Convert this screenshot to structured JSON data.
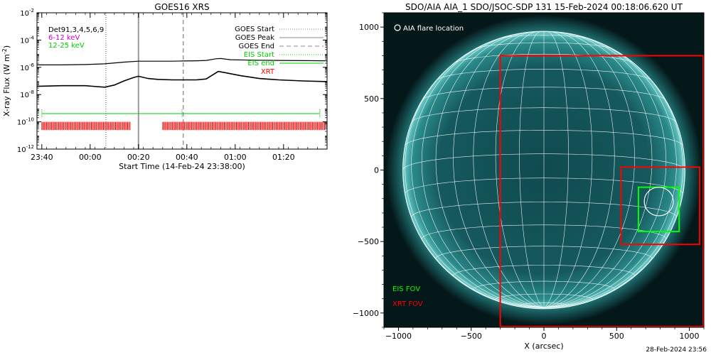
{
  "chart_data": [
    {
      "type": "line",
      "title": "GOES16 XRS",
      "ylabel": "X-ray Flux (W m",
      "ylabel_sup": "-2",
      "ylabel_close": ")",
      "xlabel": "Start Time (14-Feb-24 23:38:00)",
      "y_scale": "log",
      "ylim": [
        1e-12,
        0.01
      ],
      "y_ticks": [
        {
          "value": 1e-12,
          "base": "10",
          "exp": "-12"
        },
        {
          "value": 1e-10,
          "base": "10",
          "exp": "-10"
        },
        {
          "value": 1e-08,
          "base": "10",
          "exp": "-8"
        },
        {
          "value": 1e-06,
          "base": "10",
          "exp": "-6"
        },
        {
          "value": 0.0001,
          "base": "10",
          "exp": "-4"
        },
        {
          "value": 0.01,
          "base": "10",
          "exp": "-2"
        }
      ],
      "x_unit": "minutes after 14-Feb-24 23:38:00",
      "xlim": [
        0,
        120
      ],
      "x_ticks": [
        {
          "value": 2,
          "label": "23:40"
        },
        {
          "value": 22,
          "label": "00:00"
        },
        {
          "value": 42,
          "label": "00:20"
        },
        {
          "value": 62,
          "label": "00:40"
        },
        {
          "value": 82,
          "label": "01:00"
        },
        {
          "value": 102,
          "label": "01:20"
        }
      ],
      "top_left_legend": [
        {
          "label": "Det91,3,4,5,6,9",
          "color": "#000000"
        },
        {
          "label": "6-12 keV",
          "color": "#cc00cc"
        },
        {
          "label": "12-25 keV",
          "color": "#00cc00"
        }
      ],
      "right_legend": [
        {
          "label": "GOES Start",
          "color": "#888888",
          "dash": "dotted"
        },
        {
          "label": "GOES Peak",
          "color": "#888888",
          "dash": "solid"
        },
        {
          "label": "GOES End",
          "color": "#888888",
          "dash": "dashed"
        },
        {
          "label": "EIS Start",
          "color": "#00cc00",
          "dash": "dotted"
        },
        {
          "label": "EIS end",
          "color": "#00cc00",
          "dash": "solid"
        },
        {
          "label": "XRT",
          "color": "#ff0000",
          "dash": "none"
        }
      ],
      "vlines": [
        {
          "name": "GOES Start",
          "x": 28.5
        },
        {
          "name": "GOES Peak",
          "x": 42
        },
        {
          "name": "GOES End",
          "x": 60.5
        }
      ],
      "series": [
        {
          "color": "#000000",
          "x": [
            0,
            10,
            20,
            28,
            36,
            42,
            50,
            56,
            60,
            66,
            70,
            74,
            76,
            80,
            90,
            100,
            110,
            120
          ],
          "y": [
            1.5e-06,
            1.5e-06,
            1.6e-06,
            1.8e-06,
            2.4e-06,
            2.8e-06,
            2.8e-06,
            2.8e-06,
            2.9e-06,
            3e-06,
            3.2e-06,
            4.2e-06,
            4.4e-06,
            3.6e-06,
            3.3e-06,
            3.2e-06,
            3.1e-06,
            3e-06
          ]
        },
        {
          "color": "#000000",
          "x": [
            0,
            10,
            20,
            28,
            32,
            36,
            40,
            42,
            46,
            50,
            56,
            60,
            66,
            70,
            73,
            75,
            78,
            84,
            92,
            100,
            110,
            120
          ],
          "y": [
            4e-08,
            4.5e-08,
            4.5e-08,
            3.5e-08,
            5e-08,
            1e-07,
            1.8e-07,
            2.2e-07,
            1.5e-07,
            1.3e-07,
            1.2e-07,
            1.2e-07,
            1.2e-07,
            1.4e-07,
            3e-07,
            5e-07,
            4e-07,
            2.5e-07,
            1.5e-07,
            1.2e-07,
            1e-07,
            9e-08
          ]
        }
      ],
      "eis_rasters": [
        {
          "x0": 2,
          "x1": 60,
          "y": 4e-10
        },
        {
          "x0": 60,
          "x1": 117,
          "y": 4e-10
        }
      ],
      "xrt_observations": [
        {
          "x0": 2,
          "x1": 38.5
        },
        {
          "x0": 52,
          "x1": 119
        }
      ]
    },
    {
      "type": "image",
      "title": "SDO/AIA AIA_1 SDO/JSOC-SDP 131 15-Feb-2024 00:18:06.620 UT",
      "xlabel": "X (arcsec)",
      "xlim": [
        -1100,
        1100
      ],
      "ylim": [
        -1100,
        1100
      ],
      "x_ticks": [
        -1000,
        -500,
        0,
        500,
        1000
      ],
      "y_ticks": [
        -1000,
        -500,
        0,
        500,
        1000
      ],
      "solar_radius_arcsec": 970,
      "legend": [
        {
          "label": "AIA flare location",
          "color": "#ffffff",
          "marker": "circle"
        },
        {
          "label": "EIS FOV",
          "color": "#00ff00"
        },
        {
          "label": "XRT FOV",
          "color": "#ff0000"
        }
      ],
      "flare_location": {
        "x": 790,
        "y": -220,
        "r": 100
      },
      "eis_fov": {
        "x": [
          650,
          930
        ],
        "y": [
          -430,
          -120
        ]
      },
      "xrt_fovs": [
        {
          "x": [
            -300,
            1100
          ],
          "y": [
            -1100,
            800
          ]
        },
        {
          "x": [
            530,
            1070
          ],
          "y": [
            -520,
            20
          ]
        }
      ]
    }
  ],
  "footer": {
    "timestamp": "28-Feb-2024 23:56"
  }
}
